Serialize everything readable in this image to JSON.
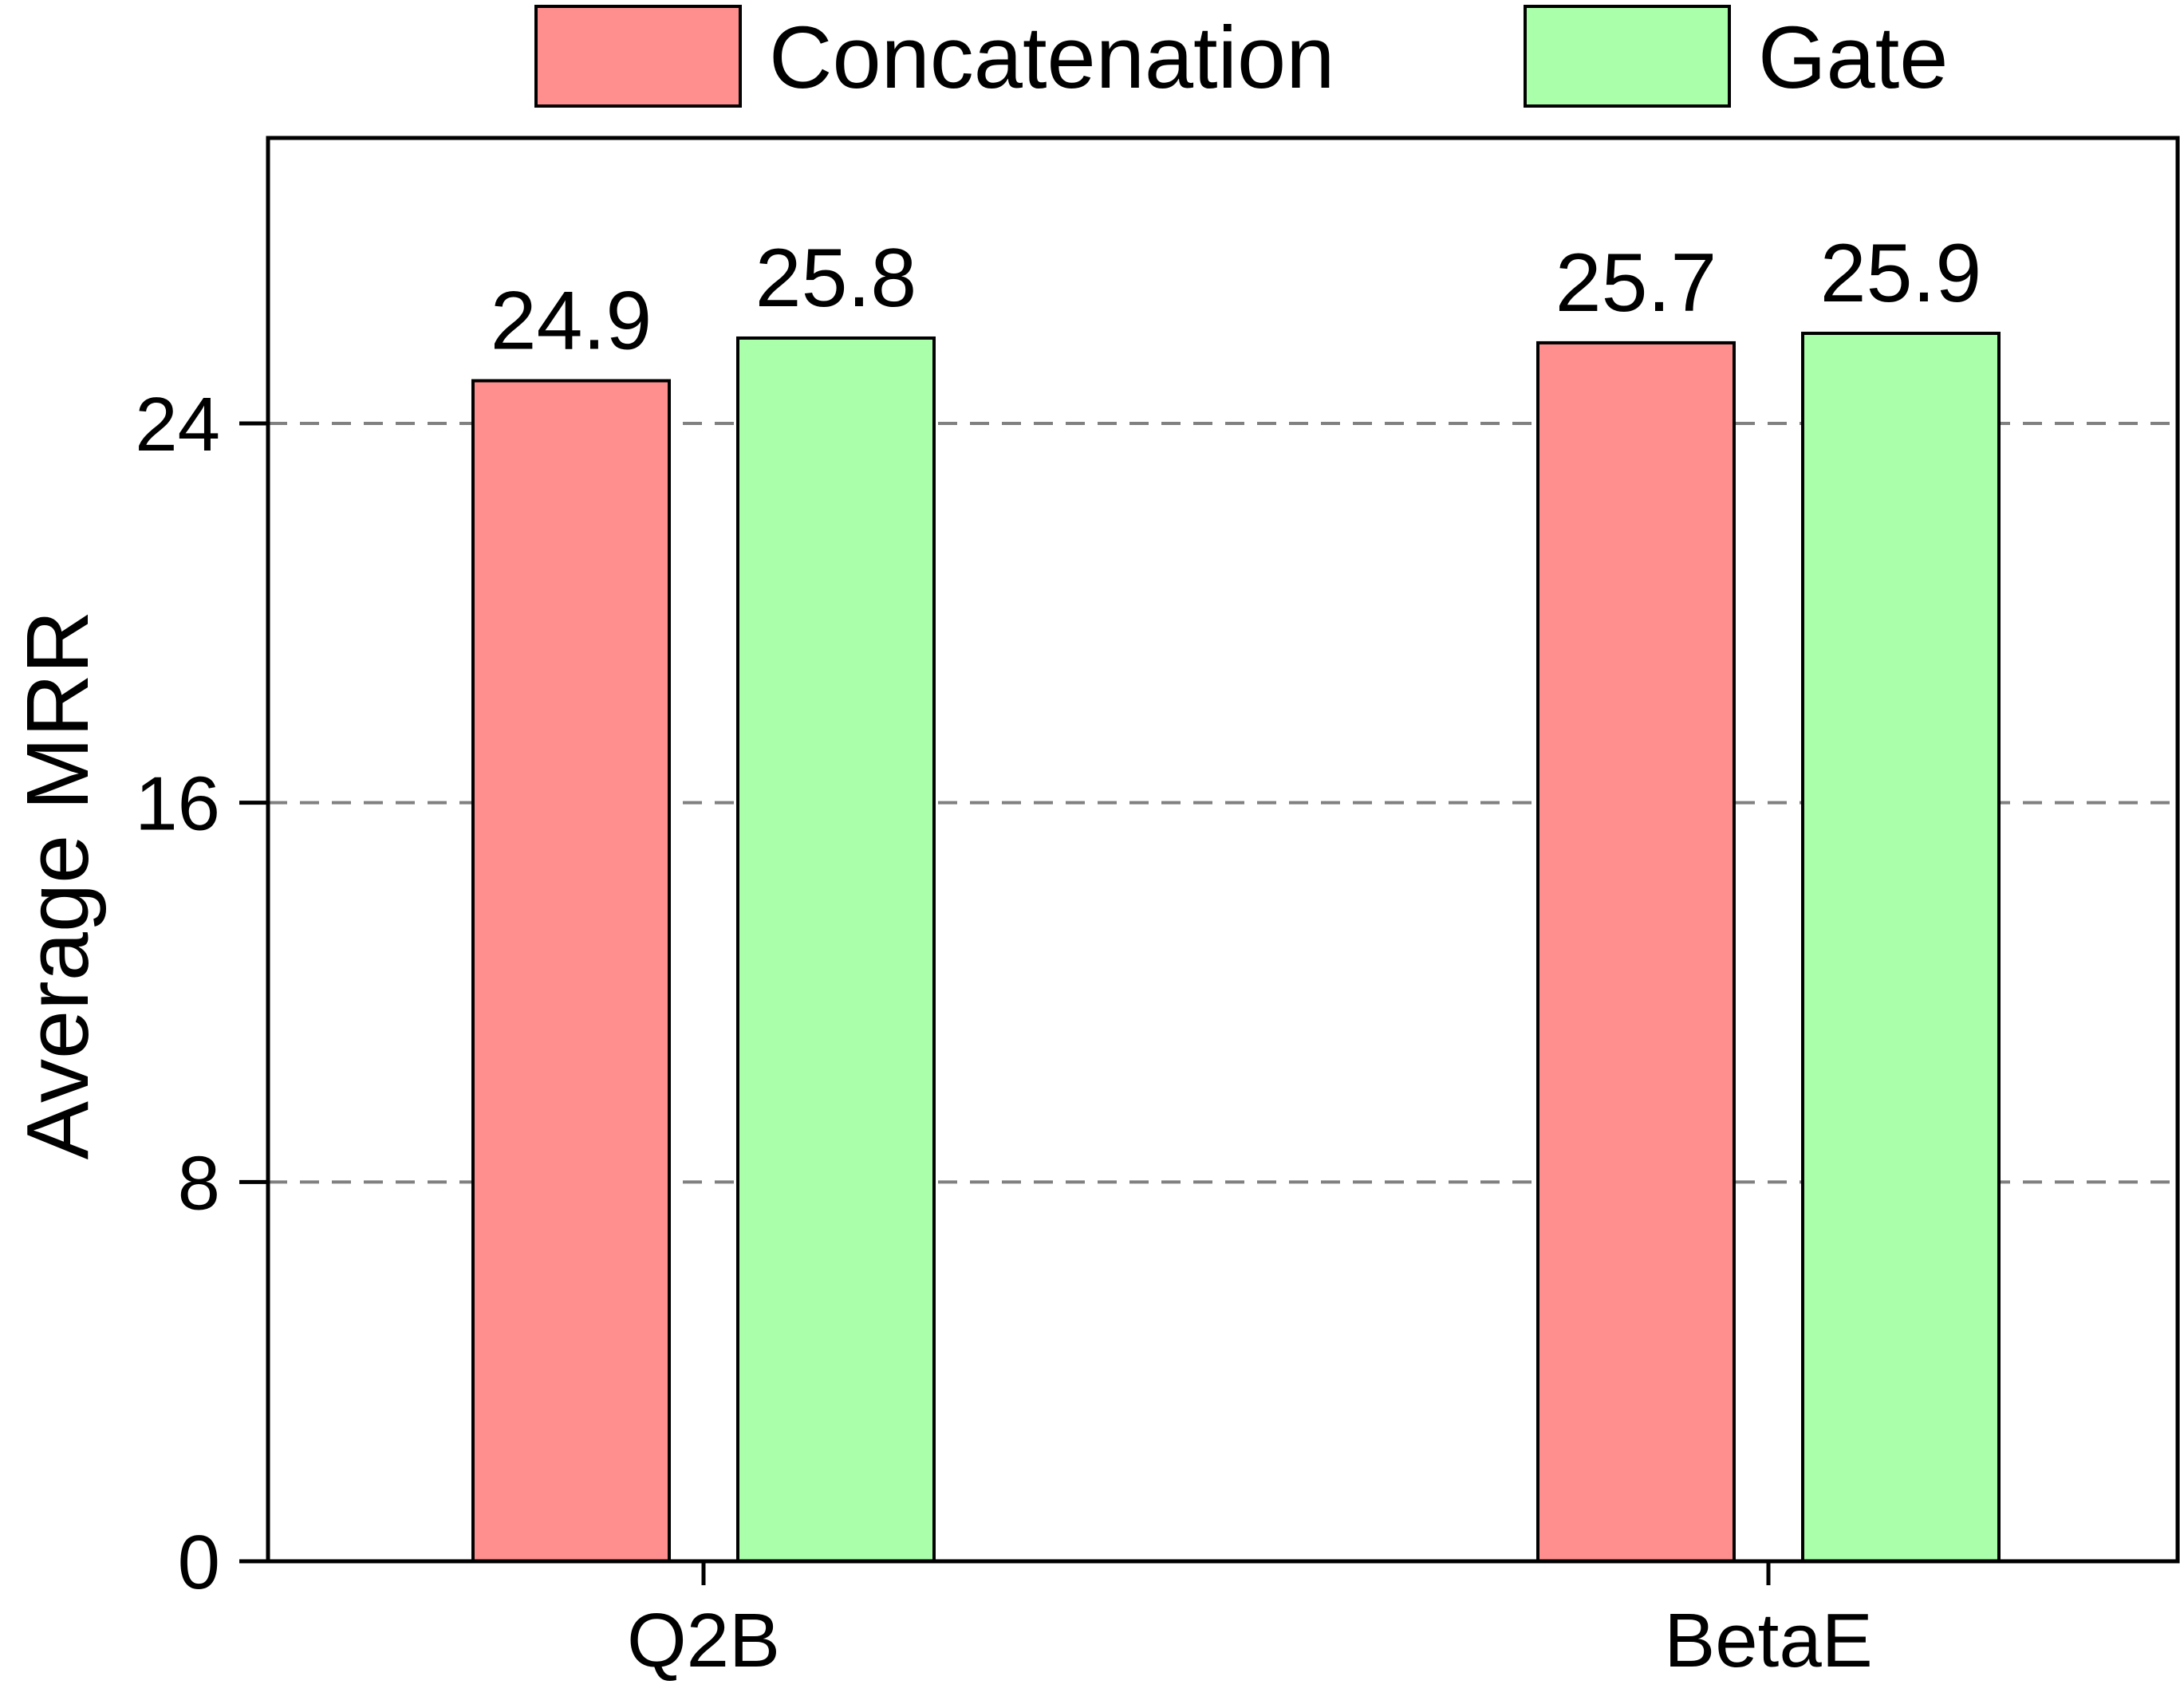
{
  "chart_data": {
    "type": "bar",
    "categories": [
      "Q2B",
      "BetaE"
    ],
    "series": [
      {
        "name": "Concatenation",
        "values": [
          24.9,
          25.7
        ],
        "color": "#ff8f8f"
      },
      {
        "name": "Gate",
        "values": [
          25.8,
          25.9
        ],
        "color": "#aaffaa"
      }
    ],
    "value_labels": [
      [
        "24.9",
        "25.7"
      ],
      [
        "25.8",
        "25.9"
      ]
    ],
    "ylabel": "Average MRR",
    "xlabel": "",
    "ylim": [
      0,
      30
    ],
    "yticks": [
      0,
      8,
      16,
      24
    ],
    "ytick_labels": [
      "0",
      "8",
      "16",
      "24"
    ],
    "grid": "horizontal dashed",
    "legend_position": "top-center"
  }
}
